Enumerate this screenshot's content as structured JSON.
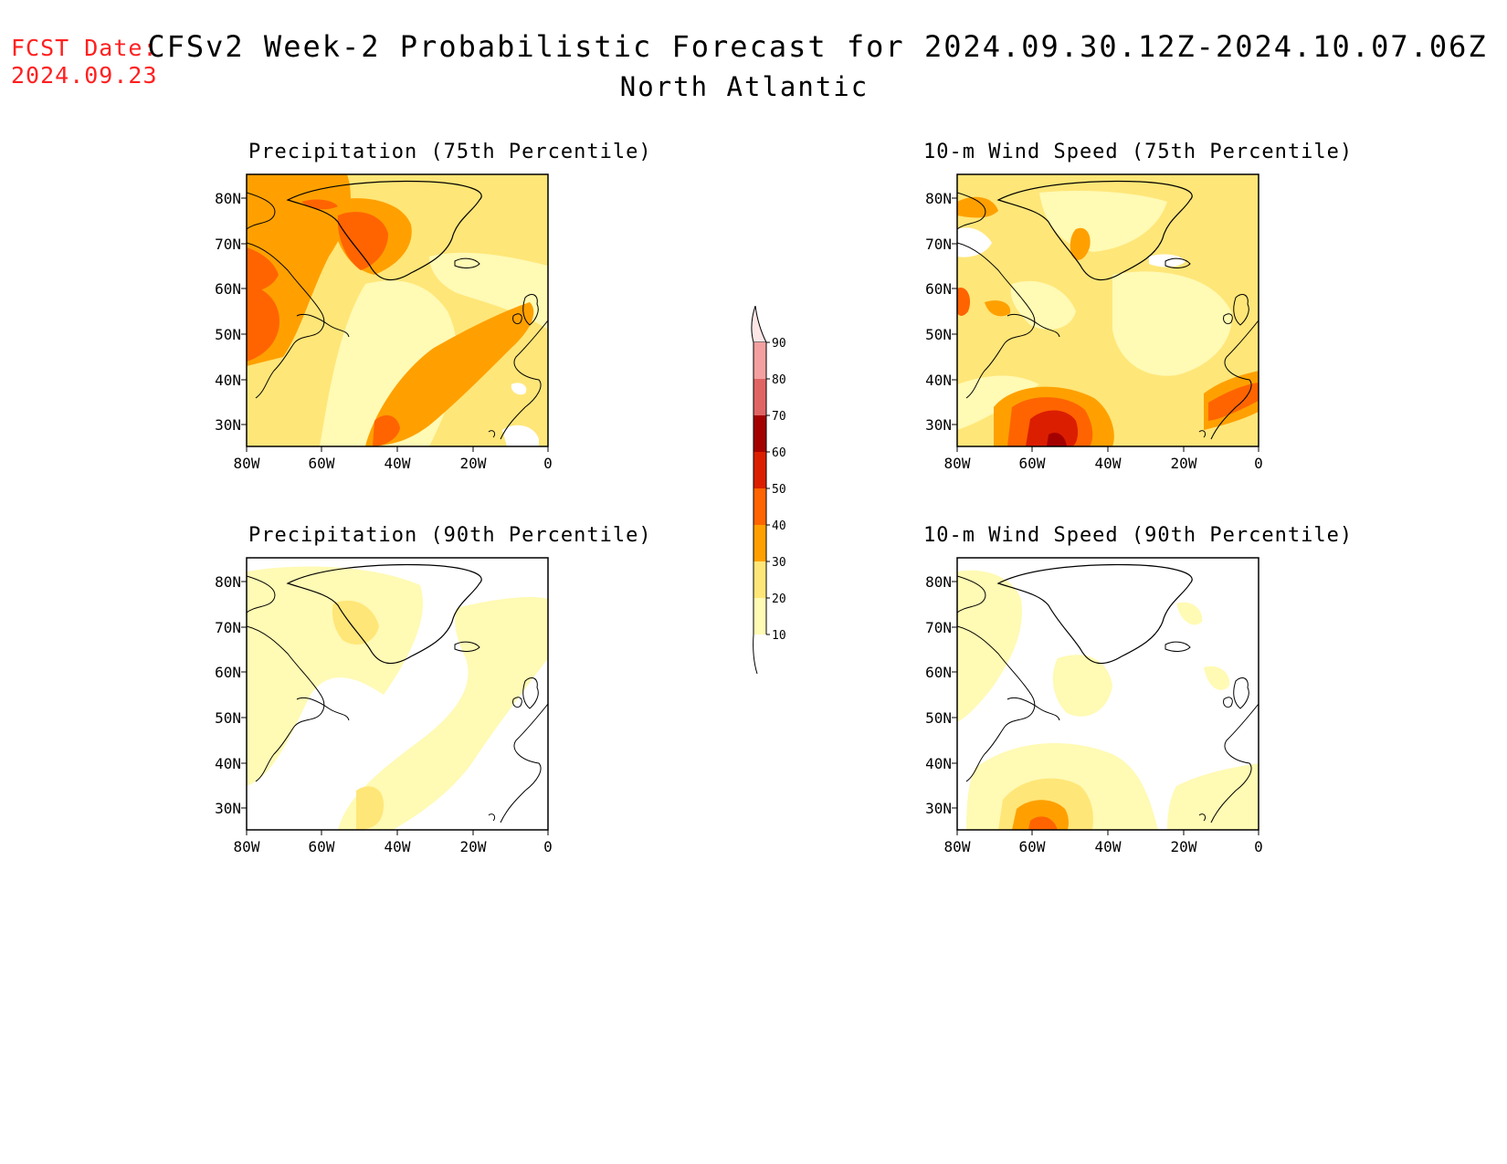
{
  "header": {
    "fcst_label": "FCST Date:",
    "fcst_date": "2024.09.23",
    "title": "CFSv2 Week-2 Probabilistic Forecast for 2024.09.30.12Z-2024.10.07.06Z",
    "region": "North Atlantic"
  },
  "axes": {
    "lat_ticks": [
      "80N",
      "70N",
      "60N",
      "50N",
      "40N",
      "30N"
    ],
    "lon_ticks": [
      "80W",
      "60W",
      "40W",
      "20W",
      "0"
    ]
  },
  "panels": [
    {
      "id": "precip75",
      "title": "Precipitation (75th Percentile)"
    },
    {
      "id": "wind75",
      "title": "10-m Wind Speed (75th Percentile)"
    },
    {
      "id": "precip90",
      "title": "Precipitation (90th Percentile)"
    },
    {
      "id": "wind90",
      "title": "10-m Wind Speed (90th Percentile)"
    }
  ],
  "colorbar": {
    "labels": [
      "90",
      "80",
      "70",
      "60",
      "50",
      "40",
      "30",
      "20",
      "10"
    ],
    "colors": [
      "#ffe6e6",
      "#f4a0a0",
      "#e06464",
      "#a50000",
      "#dc1e00",
      "#ff6400",
      "#ffa000",
      "#ffe678",
      "#fffab4"
    ]
  }
}
